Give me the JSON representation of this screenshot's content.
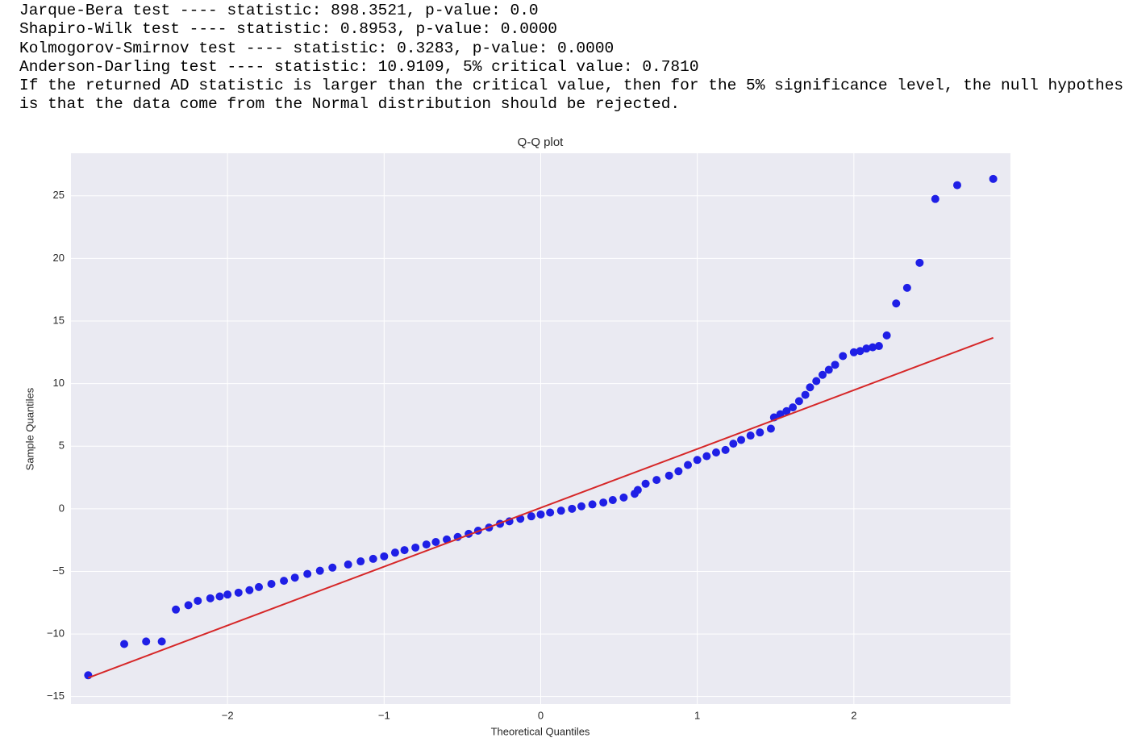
{
  "output_lines": [
    "Jarque-Bera test ---- statistic: 898.3521, p-value: 0.0",
    "Shapiro-Wilk test ---- statistic: 0.8953, p-value: 0.0000",
    "Kolmogorov-Smirnov test ---- statistic: 0.3283, p-value: 0.0000",
    "Anderson-Darling test ---- statistic: 10.9109, 5% critical value: 0.7810",
    "If the returned AD statistic is larger than the critical value, then for the 5% significance level, the null hypothes",
    "is that the data come from the Normal distribution should be rejected."
  ],
  "chart_data": {
    "type": "scatter",
    "title": "Q-Q plot",
    "x_label": "Theoretical Quantiles",
    "y_label": "Sample Quantiles",
    "xlim": [
      -3.0,
      3.0
    ],
    "ylim": [
      -15.6,
      28.4
    ],
    "xticks": [
      {
        "value": -2,
        "label": "−2"
      },
      {
        "value": -1,
        "label": "−1"
      },
      0,
      1,
      2
    ],
    "yticks": [
      {
        "value": -15,
        "label": "−15"
      },
      {
        "value": -10,
        "label": "−10"
      },
      {
        "value": -5,
        "label": "−5"
      },
      0,
      5,
      10,
      15,
      20,
      25
    ],
    "grid": true,
    "background": "#eaeaf2",
    "points": {
      "color": "#1f1fe6",
      "x": [
        -2.89,
        -2.66,
        -2.52,
        -2.42,
        -2.33,
        -2.25,
        -2.19,
        -2.11,
        -2.05,
        -2.0,
        -1.93,
        -1.86,
        -1.8,
        -1.72,
        -1.64,
        -1.57,
        -1.49,
        -1.41,
        -1.33,
        -1.23,
        -1.15,
        -1.07,
        -1.0,
        -0.93,
        -0.87,
        -0.8,
        -0.73,
        -0.67,
        -0.6,
        -0.53,
        -0.46,
        -0.4,
        -0.33,
        -0.26,
        -0.2,
        -0.13,
        -0.06,
        0,
        0.06,
        0.13,
        0.2,
        0.26,
        0.33,
        0.4,
        0.46,
        0.53,
        0.6,
        0.62,
        0.67,
        0.74,
        0.82,
        0.88,
        0.94,
        1.0,
        1.06,
        1.12,
        1.18,
        1.23,
        1.28,
        1.34,
        1.4,
        1.47,
        1.49,
        1.53,
        1.57,
        1.61,
        1.65,
        1.69,
        1.72,
        1.76,
        1.8,
        1.84,
        1.88,
        1.93,
        2.0,
        2.04,
        2.08,
        2.12,
        2.16,
        2.21,
        2.27,
        2.34,
        2.42,
        2.52,
        2.66,
        2.89
      ],
      "y": [
        -13.3,
        -10.8,
        -10.6,
        -10.6,
        -8.05,
        -7.7,
        -7.35,
        -7.15,
        -7.0,
        -6.85,
        -6.7,
        -6.5,
        -6.25,
        -6.0,
        -5.75,
        -5.5,
        -5.2,
        -4.95,
        -4.7,
        -4.45,
        -4.2,
        -4.0,
        -3.8,
        -3.5,
        -3.3,
        -3.1,
        -2.85,
        -2.65,
        -2.45,
        -2.25,
        -2.0,
        -1.75,
        -1.5,
        -1.2,
        -1.0,
        -0.8,
        -0.6,
        -0.45,
        -0.3,
        -0.15,
        0.0,
        0.2,
        0.35,
        0.5,
        0.7,
        0.9,
        1.2,
        1.5,
        2.0,
        2.3,
        2.65,
        3.0,
        3.5,
        3.9,
        4.2,
        4.5,
        4.7,
        5.2,
        5.5,
        5.85,
        6.1,
        6.4,
        7.3,
        7.55,
        7.8,
        8.1,
        8.6,
        9.1,
        9.7,
        10.2,
        10.7,
        11.1,
        11.5,
        12.2,
        12.5,
        12.6,
        12.8,
        12.9,
        13.0,
        13.85,
        16.4,
        17.65,
        19.65,
        24.75,
        25.85,
        26.35
      ]
    },
    "fit_line": {
      "color": "#d62728",
      "x": [
        -2.89,
        2.89
      ],
      "y": [
        -13.5,
        13.66
      ]
    }
  }
}
